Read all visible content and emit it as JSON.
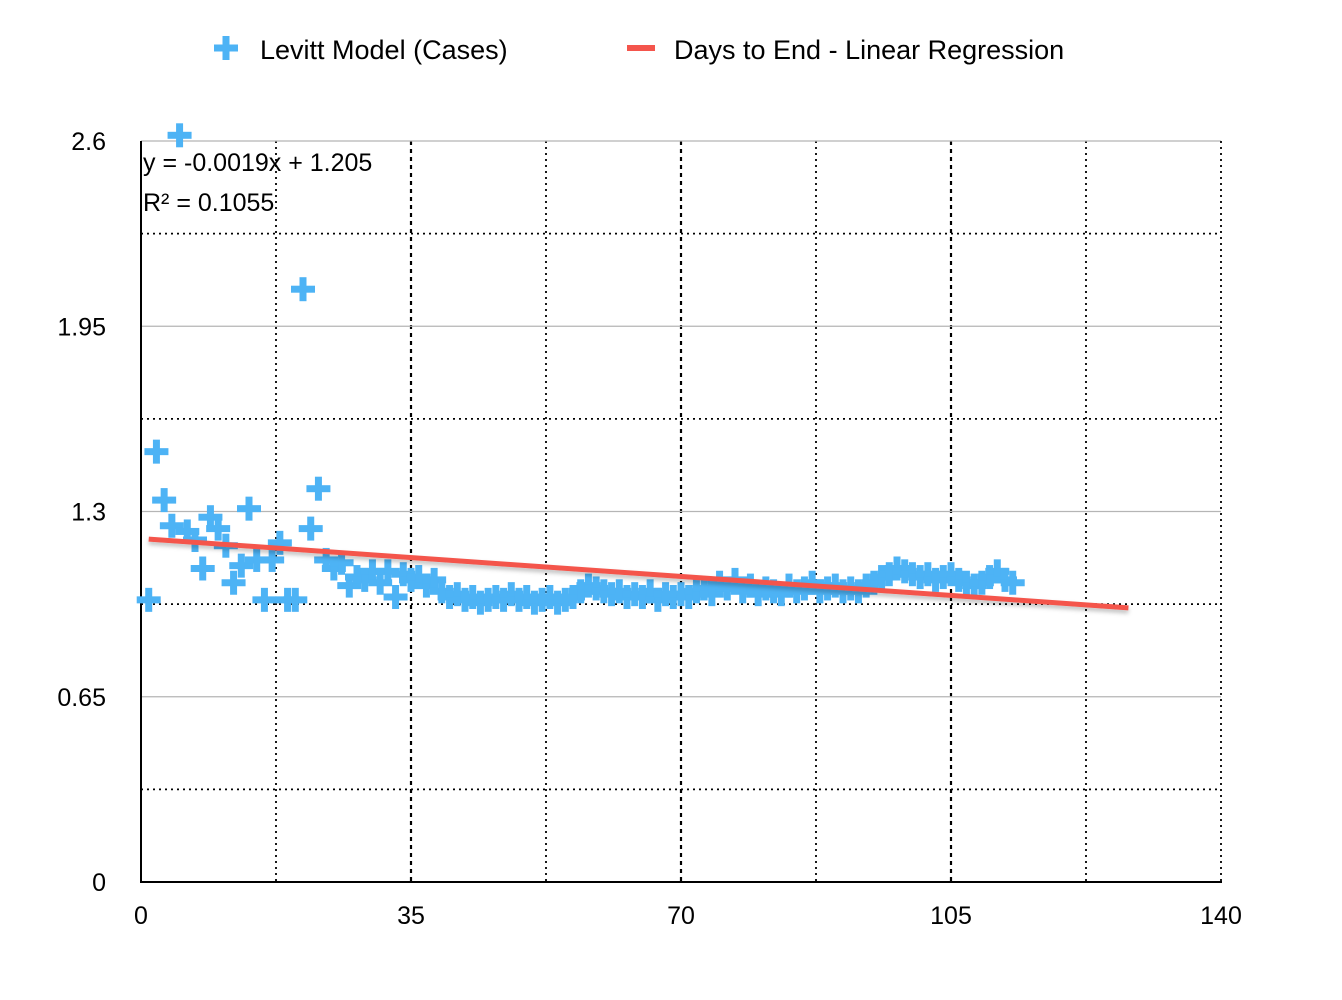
{
  "chart_data": {
    "type": "scatter",
    "title": "",
    "xlabel": "",
    "ylabel": "",
    "xlim": [
      0,
      140
    ],
    "ylim": [
      0,
      2.6
    ],
    "x_ticks": [
      "0",
      "35",
      "70",
      "105",
      "140"
    ],
    "y_ticks": [
      "0",
      "0.65",
      "1.3",
      "1.95",
      "2.6"
    ],
    "grid": true,
    "legend_position": "top",
    "colors": {
      "scatter": "#4db3f5",
      "regression": "#f4554c"
    },
    "series": [
      {
        "name": "Levitt Model (Cases)",
        "type": "scatter",
        "marker": "plus",
        "points": [
          [
            1,
            0.99
          ],
          [
            2,
            1.51
          ],
          [
            3,
            1.34
          ],
          [
            4,
            1.25
          ],
          [
            5,
            2.62
          ],
          [
            6,
            1.23
          ],
          [
            7,
            1.2
          ],
          [
            8,
            1.1
          ],
          [
            9,
            1.28
          ],
          [
            10,
            1.24
          ],
          [
            11,
            1.18
          ],
          [
            12,
            1.05
          ],
          [
            13,
            1.11
          ],
          [
            14,
            1.31
          ],
          [
            15,
            1.13
          ],
          [
            16,
            0.99
          ],
          [
            17,
            1.13
          ],
          [
            18,
            1.19
          ],
          [
            19,
            0.99
          ],
          [
            20,
            0.99
          ],
          [
            21,
            2.08
          ],
          [
            22,
            1.24
          ],
          [
            23,
            1.38
          ],
          [
            24,
            1.13
          ],
          [
            25,
            1.1
          ],
          [
            26,
            1.12
          ],
          [
            27,
            1.04
          ],
          [
            28,
            1.07
          ],
          [
            29,
            1.06
          ],
          [
            30,
            1.09
          ],
          [
            31,
            1.05
          ],
          [
            32,
            1.09
          ],
          [
            33,
            1.0
          ],
          [
            34,
            1.08
          ],
          [
            35,
            1.06
          ],
          [
            36,
            1.07
          ],
          [
            37,
            1.04
          ],
          [
            38,
            1.06
          ],
          [
            39,
            1.02
          ],
          [
            40,
            1.0
          ],
          [
            41,
            1.01
          ],
          [
            42,
            0.99
          ],
          [
            43,
            1.0
          ],
          [
            44,
            0.98
          ],
          [
            45,
            0.99
          ],
          [
            46,
            1.0
          ],
          [
            47,
            0.99
          ],
          [
            48,
            1.01
          ],
          [
            49,
            0.99
          ],
          [
            50,
            1.0
          ],
          [
            51,
            0.98
          ],
          [
            52,
            0.99
          ],
          [
            53,
            1.0
          ],
          [
            54,
            0.98
          ],
          [
            55,
            0.99
          ],
          [
            56,
            1.0
          ],
          [
            57,
            1.02
          ],
          [
            58,
            1.04
          ],
          [
            59,
            1.03
          ],
          [
            60,
            1.02
          ],
          [
            61,
            1.01
          ],
          [
            62,
            1.02
          ],
          [
            63,
            1.0
          ],
          [
            64,
            1.01
          ],
          [
            65,
            1.0
          ],
          [
            66,
            1.02
          ],
          [
            67,
            0.99
          ],
          [
            68,
            1.01
          ],
          [
            69,
            1.0
          ],
          [
            70,
            1.01
          ],
          [
            71,
            1.0
          ],
          [
            72,
            1.02
          ],
          [
            73,
            1.03
          ],
          [
            74,
            1.01
          ],
          [
            75,
            1.05
          ],
          [
            76,
            1.03
          ],
          [
            77,
            1.06
          ],
          [
            78,
            1.02
          ],
          [
            79,
            1.04
          ],
          [
            80,
            1.01
          ],
          [
            81,
            1.03
          ],
          [
            82,
            1.02
          ],
          [
            83,
            1.01
          ],
          [
            84,
            1.04
          ],
          [
            85,
            1.02
          ],
          [
            86,
            1.03
          ],
          [
            87,
            1.05
          ],
          [
            88,
            1.02
          ],
          [
            89,
            1.03
          ],
          [
            90,
            1.04
          ],
          [
            91,
            1.02
          ],
          [
            92,
            1.03
          ],
          [
            93,
            1.02
          ],
          [
            94,
            1.04
          ],
          [
            95,
            1.05
          ],
          [
            96,
            1.07
          ],
          [
            97,
            1.08
          ],
          [
            98,
            1.1
          ],
          [
            99,
            1.09
          ],
          [
            100,
            1.08
          ],
          [
            101,
            1.07
          ],
          [
            102,
            1.08
          ],
          [
            103,
            1.06
          ],
          [
            104,
            1.07
          ],
          [
            105,
            1.08
          ],
          [
            106,
            1.06
          ],
          [
            107,
            1.05
          ],
          [
            108,
            1.04
          ],
          [
            109,
            1.05
          ],
          [
            110,
            1.07
          ],
          [
            111,
            1.09
          ],
          [
            112,
            1.06
          ],
          [
            113,
            1.05
          ]
        ]
      },
      {
        "name": "Days to End - Linear Regression",
        "type": "line",
        "slope": -0.0019,
        "intercept": 1.205,
        "x_range": [
          1,
          128
        ]
      }
    ],
    "annotations": [
      "y = -0.0019x + 1.205",
      "R² = 0.1055"
    ]
  }
}
